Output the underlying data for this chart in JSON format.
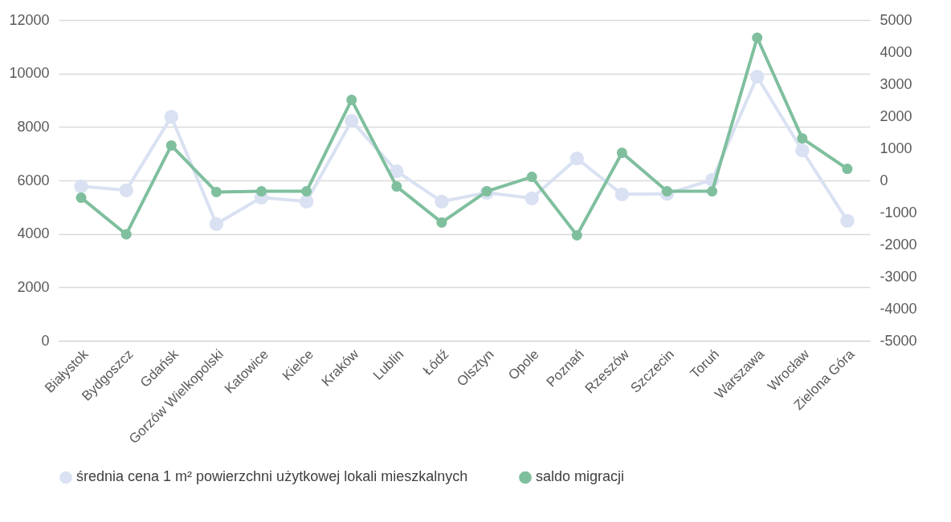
{
  "chart_data": {
    "type": "line",
    "categories": [
      "Białystok",
      "Bydgoszcz",
      "Gdańsk",
      "Gorzów Wielkopolski",
      "Katowice",
      "Kielce",
      "Kraków",
      "Lublin",
      "Łódź",
      "Olsztyn",
      "Opole",
      "Poznań",
      "Rzeszów",
      "Szczecin",
      "Toruń",
      "Warszawa",
      "Wrocław",
      "Zielona Góra"
    ],
    "series": [
      {
        "name": "średnia cena 1 m² powierzchni użytkowej lokali mieszkalnych",
        "color": "#d9e1f2",
        "values": [
          5780,
          5630,
          8380,
          4370,
          5360,
          5210,
          8230,
          6340,
          5210,
          5540,
          5330,
          6820,
          5480,
          5500,
          6020,
          9880,
          7120,
          4490
        ]
      },
      {
        "name": "saldo migracji",
        "color": "#7fbf9e",
        "axis": "y2",
        "values": [
          -540,
          -1680,
          1090,
          -360,
          -340,
          -340,
          2510,
          -190,
          -1310,
          -340,
          110,
          -1710,
          860,
          -340,
          -340,
          4450,
          1310,
          360
        ]
      }
    ],
    "ylim": [
      0,
      12000
    ],
    "yticks": [
      0,
      2000,
      4000,
      6000,
      8000,
      10000,
      12000
    ],
    "y2lim": [
      -5000,
      5000
    ],
    "y2ticks": [
      -5000,
      -4000,
      -3000,
      -2000,
      -1000,
      0,
      1000,
      2000,
      3000,
      4000,
      5000
    ],
    "grid": "y",
    "legend": "bottom",
    "marker": "circle",
    "line_style": "solid"
  }
}
